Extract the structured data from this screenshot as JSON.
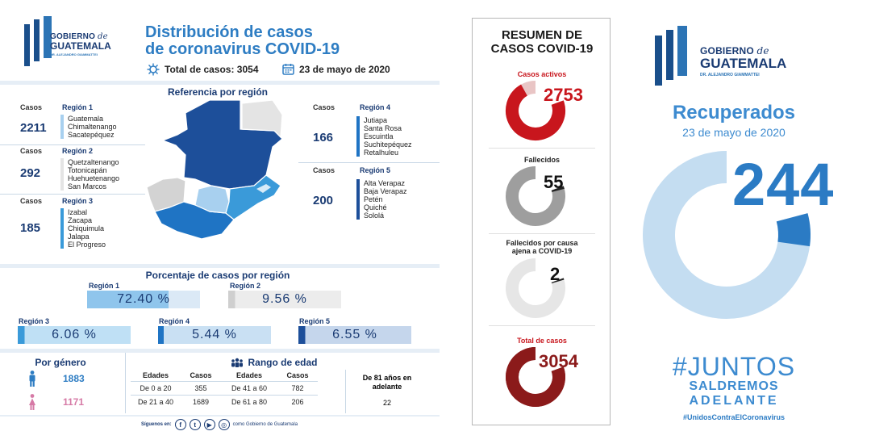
{
  "colors": {
    "navy": "#1a3b73",
    "blue": "#2e7dc3",
    "light_blue": "#a8d0ef",
    "red": "#c8161d",
    "dark_red": "#8b1a1a",
    "gray": "#9e9e9e",
    "pink": "#d67aa6"
  },
  "logo": {
    "line1": "GOBIERNO",
    "line1_de": "de",
    "line2": "GUATEMALA",
    "line3": "DR. ALEJANDRO GIAMMATTEI"
  },
  "left": {
    "title_line1": "Distribución de casos",
    "title_line2": "de coronavirus COVID-19",
    "total_label": "Total de casos: 3054",
    "date": "23 de mayo de 2020",
    "ref_title": "Referencia por región",
    "casos_label": "Casos",
    "regions": [
      {
        "name": "Región 1",
        "cases": "2211",
        "depts": [
          "Guatemala",
          "Chimaltenango",
          "Sacatepéquez"
        ],
        "color": "#a8d0ef"
      },
      {
        "name": "Región 2",
        "cases": "292",
        "depts": [
          "Quetzaltenango",
          "Totonicapán",
          "Huehuetenango",
          "San Marcos"
        ],
        "color": "#e4e4e4"
      },
      {
        "name": "Región 3",
        "cases": "185",
        "depts": [
          "Izabal",
          "Zacapa",
          "Chiquimula",
          "Jalapa",
          "El Progreso"
        ],
        "color": "#3a9ad9"
      },
      {
        "name": "Región 4",
        "cases": "166",
        "depts": [
          "Jutiapa",
          "Santa Rosa",
          "Escuintla",
          "Suchitepéquez",
          "Retalhuleu"
        ],
        "color": "#1f74c4"
      },
      {
        "name": "Región 5",
        "cases": "200",
        "depts": [
          "Alta Verapaz",
          "Baja Verapaz",
          "Petén",
          "Quiché",
          "Sololá"
        ],
        "color": "#1d4f9a"
      }
    ],
    "pct_title": "Porcentaje de casos por región",
    "pct": [
      {
        "label": "Región 1",
        "value": "72.40 %"
      },
      {
        "label": "Región 2",
        "value": "9.56 %"
      },
      {
        "label": "Región 3",
        "value": "6.06 %"
      },
      {
        "label": "Región 4",
        "value": "5.44 %"
      },
      {
        "label": "Región 5",
        "value": "6.55 %"
      }
    ],
    "gender_title": "Por género",
    "male": "1883",
    "female": "1171",
    "age_title": "Rango de edad",
    "age_headers": [
      "Edades",
      "Casos",
      "Edades",
      "Casos",
      "De 81 años en adelante"
    ],
    "age_rows": [
      [
        "De 0 a 20",
        "355",
        "De 41 a 60",
        "782"
      ],
      [
        "De 21 a 40",
        "1689",
        "De 61 a 80",
        "206"
      ]
    ],
    "age_81": "22",
    "follow_label": "Síguenos en:",
    "follow_handle": "como Gobierno de Guatemala"
  },
  "mid": {
    "title_line1": "RESUMEN DE",
    "title_line2": "CASOS COVID-19",
    "items": [
      {
        "label": "Casos activos",
        "value": "2753",
        "fraction": 0.9
      },
      {
        "label": "Fallecidos",
        "value": "55",
        "fraction": 0.02
      },
      {
        "label_line1": "Fallecidos por causa",
        "label_line2": "ajena a COVID-19",
        "value": "2",
        "fraction": 0.01
      },
      {
        "label": "Total de casos",
        "value": "3054",
        "fraction": 1.0
      }
    ]
  },
  "right": {
    "recuperados_title": "Recuperados",
    "date": "23 de mayo de 2020",
    "value": "244",
    "fraction": 0.08,
    "hashtag1": "#JUNTOS",
    "hashtag2": "SALDREMOS",
    "hashtag3": "ADELANTE",
    "hashtag4": "#UnidosContraElCoronavirus"
  }
}
